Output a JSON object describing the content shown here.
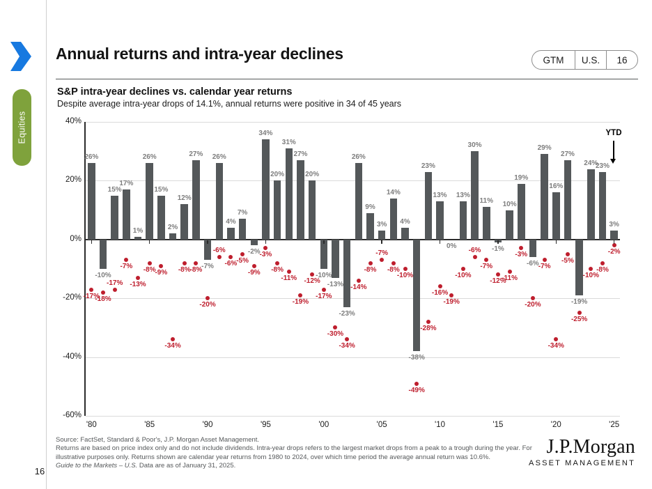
{
  "page": {
    "page_number": "16",
    "sidebar_label": "Equities"
  },
  "header": {
    "title": "Annual returns and intra-year declines",
    "badge": {
      "gtm": "GTM",
      "region": "U.S.",
      "page": "16"
    }
  },
  "chart": {
    "title": "S&P intra-year declines vs. calendar year returns",
    "subtitle": "Despite average intra-year drops of 14.1%, annual returns were positive in 34 of 45 years",
    "ytd_annotation": "YTD"
  },
  "chart_data": {
    "type": "bar",
    "years": [
      1980,
      1981,
      1982,
      1983,
      1984,
      1985,
      1986,
      1987,
      1988,
      1989,
      1990,
      1991,
      1992,
      1993,
      1994,
      1995,
      1996,
      1997,
      1998,
      1999,
      2000,
      2001,
      2002,
      2003,
      2004,
      2005,
      2006,
      2007,
      2008,
      2009,
      2010,
      2011,
      2012,
      2013,
      2014,
      2015,
      2016,
      2017,
      2018,
      2019,
      2020,
      2021,
      2022,
      2023,
      2024,
      2025
    ],
    "series": [
      {
        "name": "Calendar year returns",
        "style": "bar",
        "values": [
          26,
          -10,
          15,
          17,
          1,
          26,
          15,
          2,
          12,
          27,
          -7,
          26,
          4,
          7,
          -2,
          34,
          20,
          31,
          27,
          20,
          -10,
          -13,
          -23,
          26,
          9,
          3,
          14,
          4,
          -38,
          23,
          13,
          0,
          13,
          30,
          11,
          -1,
          10,
          19,
          -6,
          29,
          16,
          27,
          -19,
          24,
          23,
          3
        ]
      },
      {
        "name": "Intra-year declines",
        "style": "scatter",
        "values": [
          -17,
          -18,
          -17,
          -7,
          -13,
          -8,
          -9,
          -34,
          -8,
          -8,
          -20,
          -6,
          -6,
          -5,
          -9,
          -3,
          -8,
          -11,
          -19,
          -12,
          -17,
          -30,
          -34,
          -14,
          -8,
          -7,
          -8,
          -10,
          -49,
          -28,
          -16,
          -19,
          -10,
          -6,
          -7,
          -12,
          -11,
          -3,
          -20,
          -7,
          -34,
          -5,
          -25,
          -10,
          -8,
          -2
        ]
      }
    ],
    "ylim": [
      -60,
      40
    ],
    "ytick_values": [
      40,
      20,
      0,
      -20,
      -40,
      -60
    ],
    "ytick_labels": [
      "40%",
      "20%",
      "0%",
      "-20%",
      "-40%",
      "-60%"
    ],
    "xtick_labels": [
      "'80",
      "'85",
      "'90",
      "'95",
      "'00",
      "'05",
      "'10",
      "'15",
      "'20",
      "'25"
    ],
    "grid": "horizontal",
    "decline_label_above_years": [
      1982,
      1991,
      2005,
      2013
    ],
    "bar_color": "#54585A",
    "bar_label_color": "#7d7d7d",
    "dot_color": "#BE1E2D",
    "accent_blue": "#1779E0",
    "accent_green": "#7FA23C"
  },
  "footer": {
    "source": "Source: FactSet, Standard & Poor's, J.P. Morgan Asset Management.",
    "note": "Returns are based on price index only and do not include dividends. Intra-year drops refers to the largest market drops from a peak to a trough during the year. For illustrative purposes only. Returns shown are calendar year returns from 1980 to 2024, over which time period the average annual return was 10.6%.",
    "gtm_italic": "Guide to the Markets – U.S.",
    "gtm_rest": " Data are as of January 31, 2025."
  },
  "logo": {
    "name": "J.P.Morgan",
    "subtitle": "ASSET MANAGEMENT"
  }
}
